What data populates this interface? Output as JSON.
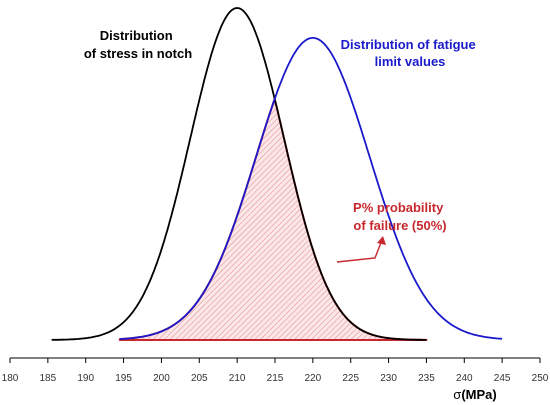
{
  "chart_data": {
    "type": "line",
    "title": "",
    "xlabel_symbol": "σ",
    "xlabel_unit": "(MPa)",
    "ylabel": "",
    "xlim": [
      180,
      250
    ],
    "ylim": [
      0,
      1
    ],
    "x_ticks": [
      "180",
      "185",
      "190",
      "195",
      "200",
      "205",
      "210",
      "215",
      "220",
      "225",
      "230",
      "235",
      "240",
      "245",
      "250"
    ],
    "grid": false,
    "series": [
      {
        "name": "Distribution of stress in notch",
        "color": "#000000",
        "mean": 210,
        "sd": 6.2,
        "peak": 1.0,
        "x_range": [
          185.5,
          235
        ]
      },
      {
        "name": "Distribution of fatigue limit values",
        "color": "#1a1acc",
        "mean": 220,
        "sd": 7.5,
        "peak": 0.91,
        "x_range": [
          194.5,
          245
        ]
      }
    ],
    "failure_region": {
      "color": "#c8282d",
      "x_range": [
        194.5,
        235
      ],
      "y_floor": 0.0
    },
    "annotations": {
      "stress_line1": "Distribution",
      "stress_line2": "of stress in notch",
      "fatigue_line1": "Distribution of fatigue",
      "fatigue_line2": "limit values",
      "failure_line1": "P% probability",
      "failure_line2": "of failure (50%)"
    }
  }
}
